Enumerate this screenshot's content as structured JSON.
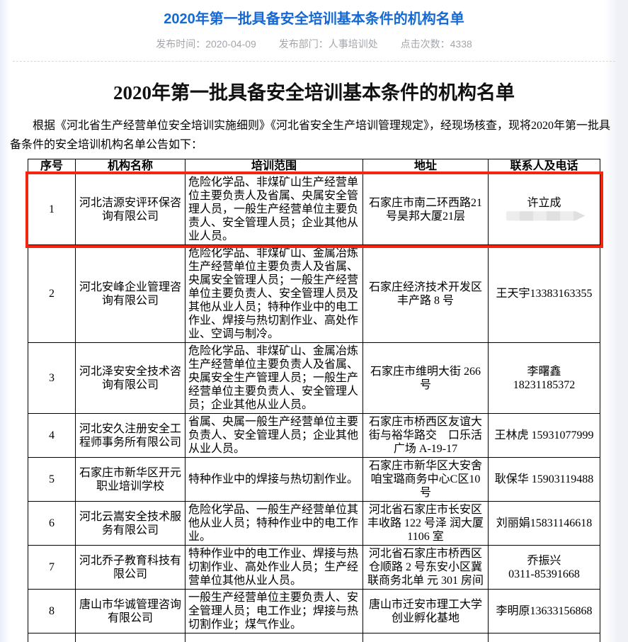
{
  "page": {
    "top": {
      "title": "2020年第一批具备安全培训基本条件的机构名单",
      "meta": [
        {
          "text": "发布时间：2020-04-09"
        },
        {
          "text": "发布部门：人事培训处"
        },
        {
          "text": "点击次数：4338"
        }
      ]
    },
    "article": {
      "title": "2020年第一批具备安全培训基本条件的机构名单",
      "intro": "根据《河北省生产经营单位安全培训实施细则》《河北省安全生产培训管理规定》，经现场核查，现将2020年第一批具备条件的安全培训机构名单公告如下："
    },
    "colors": {
      "accent_blue": "#1668d2",
      "highlight_red": "#f3260f",
      "meta_gray": "#a2a6ab"
    },
    "table": {
      "headers": [
        "序号",
        "机构名称",
        "培训范围",
        "地址",
        "联系人及电话"
      ],
      "rows": [
        {
          "seq": "1",
          "name": "河北洁源安评环保咨询有限公司",
          "scope": "危险化学品、非煤矿山生产经营单位主要负责人及省属、央属安全管理人员，一般生产经营单位主要负责人、安全管理人员；企业其他从业人员。",
          "address": "石家庄市南二环西路21号昊邦大厦21层",
          "contact": "许立成",
          "contact_redacted": true
        },
        {
          "seq": "2",
          "name": "河北安峰企业管理咨询有限公司",
          "scope": "危险化学品、非煤矿山、金属冶炼生产经营单位主要负责人及省属、央属安全管理人员；一般生产经营单位主要负责人、安全管理人员及其他从业人员；特种作业中的电工作业、焊接与热切割作业、高处作业、空调与制冷。",
          "address": "石家庄经济技术开发区丰产路 8 号",
          "contact": "王天宇13383163355"
        },
        {
          "seq": "3",
          "name": "河北泽安安全技术咨询有限公司",
          "scope": "危险化学品、非煤矿山、金属冶炼生产经营单位主要负责人及省属、央属安全生产管理人员；一般生产经营单位主要负责人、安全管理人员；企业其他从业人员。",
          "address": "石家庄市维明大街 266 号",
          "contact": "李曙鑫\n18231185372"
        },
        {
          "seq": "4",
          "name": "河北安久注册安全工程师事务所有限公司",
          "scope": "省属、央属一般生产经营单位主要负责人、安全管理人员；企业其他从业人员。",
          "address": "石家庄市桥西区友谊大街与裕华路交　口乐活广场 A-19-17",
          "contact": "王林虎 15931077999"
        },
        {
          "seq": "5",
          "name": "石家庄市新华区开元职业培训学校",
          "scope": "特种作业中的焊接与热切割作业。",
          "address": "石家庄市新华区大安舍咱宝璐商务中心C区10号",
          "contact": "耿保华 15903119488"
        },
        {
          "seq": "6",
          "name": "河北云嵩安全技术服务有限公司",
          "scope": "危险化学品、一般生产经营单位其他从业人员；特种作业中的电工作业。",
          "address": "河北省石家庄市长安区丰收路 122 号泽 润大厦 1106 室",
          "contact": "刘丽娟15831146618"
        },
        {
          "seq": "7",
          "name": "河北乔子教育科技有限公司",
          "scope": "特种作业中的电工作业、焊接与热切割作业、高处作业人员；生产经营单位其他从业人员。",
          "address": "河北省石家庄市桥西区仓顺路 2 号东安小区冀联商务北单 元 301 房间",
          "contact": "乔振兴\n0311-85391668"
        },
        {
          "seq": "8",
          "name": "唐山市华诚管理咨询有限公司",
          "scope": "一般生产经营单位主要负责人、安全管理人员；电工作业；焊接与热切割作业；煤气作业。",
          "address": "唐山市迁安市理工大学创业孵化基地",
          "contact": "李明原13633156868"
        }
      ]
    }
  }
}
